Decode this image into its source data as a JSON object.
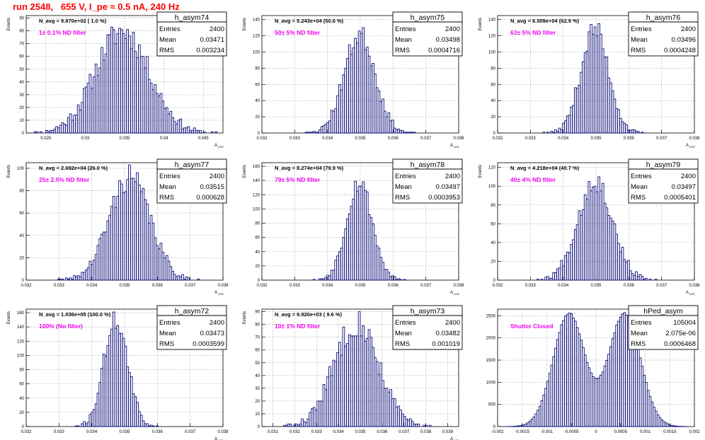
{
  "page_title": "run 2548,   655 V, I_pe ≈ 0.5 nA, 240 Hz",
  "stats_labels": {
    "entries": "Entries",
    "mean": "Mean",
    "rms": "RMS"
  },
  "chart_data": [
    {
      "type": "bar",
      "hist_name": "h_asym74",
      "ylabel": "Events",
      "xlabel": "A",
      "xlabel_sub": "LED",
      "n_avg": "N_avg = 9.870e+02 ( 1.0 %)",
      "annotation": "1± 0.1% ND filter",
      "stats": {
        "entries": "2400",
        "mean": "0.03471",
        "rms": "0.003234"
      },
      "xlim": [
        0.0225,
        0.0475
      ],
      "ylim": [
        0,
        92
      ],
      "xticks": [
        0.025,
        0.03,
        0.035,
        0.04,
        0.045
      ],
      "xticklabels": [
        "0.025",
        "0.03",
        "0.035",
        "0.04",
        "0.045"
      ],
      "yticks": [
        0,
        10,
        20,
        30,
        40,
        50,
        60,
        70,
        80,
        90
      ],
      "shape": {
        "mean": 0.03471,
        "sigma": 0.0034,
        "peak": 80,
        "bins": 100,
        "seed": 11
      }
    },
    {
      "type": "bar",
      "hist_name": "h_asym75",
      "ylabel": "Events",
      "xlabel": "A",
      "xlabel_sub": "LED",
      "n_avg": "N_avg = 5.243e+04 (50.6 %)",
      "annotation": "50± 5% ND filter",
      "stats": {
        "entries": "2400",
        "mean": "0.03498",
        "rms": "0.0004716"
      },
      "xlim": [
        0.032,
        0.038
      ],
      "ylim": [
        0,
        145
      ],
      "xticks": [
        0.032,
        0.033,
        0.034,
        0.035,
        0.036,
        0.037,
        0.038
      ],
      "xticklabels": [
        "0.032",
        "0.033",
        "0.034",
        "0.035",
        "0.036",
        "0.037",
        "0.038"
      ],
      "yticks": [
        0,
        20,
        40,
        60,
        80,
        100,
        120,
        140
      ],
      "shape": {
        "mean": 0.03498,
        "sigma": 0.00047,
        "peak": 122,
        "bins": 100,
        "seed": 23
      }
    },
    {
      "type": "bar",
      "hist_name": "h_asym76",
      "ylabel": "Events",
      "xlabel": "A",
      "xlabel_sub": "LED",
      "n_avg": "N_avg = 6.509e+04 (62.9 %)",
      "annotation": "63± 5% ND filter",
      "stats": {
        "entries": "2400",
        "mean": "0.03496",
        "rms": "0.0004248"
      },
      "xlim": [
        0.032,
        0.038
      ],
      "ylim": [
        0,
        145
      ],
      "xticks": [
        0.032,
        0.033,
        0.034,
        0.035,
        0.036,
        0.037,
        0.038
      ],
      "xticklabels": [
        "0.032",
        "0.033",
        "0.034",
        "0.035",
        "0.036",
        "0.037",
        "0.038"
      ],
      "yticks": [
        0,
        20,
        40,
        60,
        80,
        100,
        120,
        140
      ],
      "shape": {
        "mean": 0.03496,
        "sigma": 0.00042,
        "peak": 128,
        "bins": 100,
        "seed": 37
      }
    },
    {
      "type": "bar",
      "hist_name": "h_asym77",
      "ylabel": "Events",
      "xlabel": "A",
      "xlabel_sub": "LED",
      "n_avg": "N_avg = 2.692e+04 (26.0 %)",
      "annotation": "25± 2.5% ND filter",
      "stats": {
        "entries": "2400",
        "mean": "0.03515",
        "rms": "0.000628"
      },
      "xlim": [
        0.032,
        0.038
      ],
      "ylim": [
        0,
        105
      ],
      "xticks": [
        0.032,
        0.033,
        0.034,
        0.035,
        0.036,
        0.037,
        0.038
      ],
      "xticklabels": [
        "0.032",
        "0.033",
        "0.034",
        "0.035",
        "0.036",
        "0.037",
        "0.038"
      ],
      "yticks": [
        0,
        20,
        40,
        60,
        80,
        100
      ],
      "shape": {
        "mean": 0.03515,
        "sigma": 0.00062,
        "peak": 92,
        "bins": 100,
        "seed": 41
      }
    },
    {
      "type": "bar",
      "hist_name": "h_asym78",
      "ylabel": "Events",
      "xlabel": "A",
      "xlabel_sub": "LED",
      "n_avg": "N_avg = 8.274e+04 (79.9 %)",
      "annotation": "79± 5% ND filter",
      "stats": {
        "entries": "2400",
        "mean": "0.03497",
        "rms": "0.0003953"
      },
      "xlim": [
        0.032,
        0.038
      ],
      "ylim": [
        0,
        165
      ],
      "xticks": [
        0.032,
        0.033,
        0.034,
        0.035,
        0.036,
        0.037,
        0.038
      ],
      "xticklabels": [
        "0.032",
        "0.033",
        "0.034",
        "0.035",
        "0.036",
        "0.037",
        "0.038"
      ],
      "yticks": [
        0,
        20,
        40,
        60,
        80,
        100,
        120,
        140,
        160
      ],
      "shape": {
        "mean": 0.03497,
        "sigma": 0.00039,
        "peak": 138,
        "bins": 100,
        "seed": 53
      }
    },
    {
      "type": "bar",
      "hist_name": "h_asym79",
      "ylabel": "Events",
      "xlabel": "A",
      "xlabel_sub": "LED",
      "n_avg": "N_avg = 4.218e+04 (40.7 %)",
      "annotation": "40± 4% ND filter",
      "stats": {
        "entries": "2400",
        "mean": "0.03497",
        "rms": "0.0005401"
      },
      "xlim": [
        0.032,
        0.038
      ],
      "ylim": [
        0,
        125
      ],
      "xticks": [
        0.032,
        0.033,
        0.034,
        0.035,
        0.036,
        0.037,
        0.038
      ],
      "xticklabels": [
        "0.032",
        "0.033",
        "0.034",
        "0.035",
        "0.036",
        "0.037",
        "0.038"
      ],
      "yticks": [
        0,
        20,
        40,
        60,
        80,
        100,
        120
      ],
      "shape": {
        "mean": 0.03497,
        "sigma": 0.00053,
        "peak": 106,
        "bins": 100,
        "seed": 67
      }
    },
    {
      "type": "bar",
      "hist_name": "h_asym72",
      "ylabel": "Events",
      "xlabel": "A",
      "xlabel_sub": "LED",
      "n_avg": "N_avg = 1.036e+05 (100.0 %)",
      "annotation": "100% (No filter)",
      "stats": {
        "entries": "2400",
        "mean": "0.03473",
        "rms": "0.0003599"
      },
      "xlim": [
        0.032,
        0.038
      ],
      "ylim": [
        0,
        165
      ],
      "xticks": [
        0.032,
        0.033,
        0.034,
        0.035,
        0.036,
        0.037,
        0.038
      ],
      "xticklabels": [
        "0.032",
        "0.033",
        "0.034",
        "0.035",
        "0.036",
        "0.037",
        "0.038"
      ],
      "yticks": [
        0,
        20,
        40,
        60,
        80,
        100,
        120,
        140,
        160
      ],
      "shape": {
        "mean": 0.03473,
        "sigma": 0.00036,
        "peak": 150,
        "bins": 100,
        "seed": 71
      }
    },
    {
      "type": "bar",
      "hist_name": "h_asym73",
      "ylabel": "Events",
      "xlabel": "A",
      "xlabel_sub": "LED",
      "n_avg": "N_avg = 9.920e+03 ( 9.6 %)",
      "annotation": "10± 1% ND filter",
      "stats": {
        "entries": "2400",
        "mean": "0.03482",
        "rms": "0.001019"
      },
      "xlim": [
        0.0305,
        0.0395
      ],
      "ylim": [
        0,
        92
      ],
      "xticks": [
        0.031,
        0.032,
        0.033,
        0.034,
        0.035,
        0.036,
        0.037,
        0.038,
        0.039
      ],
      "xticklabels": [
        "0.031",
        "0.032",
        "0.033",
        "0.034",
        "0.035",
        "0.036",
        "0.037",
        "0.038",
        "0.039"
      ],
      "yticks": [
        0,
        10,
        20,
        30,
        40,
        50,
        60,
        70,
        80,
        90
      ],
      "shape": {
        "mean": 0.03482,
        "sigma": 0.00101,
        "peak": 82,
        "bins": 100,
        "seed": 83
      }
    },
    {
      "type": "bar",
      "hist_name": "hPed_asym",
      "ylabel": "",
      "xlabel": "",
      "xlabel_sub": "",
      "n_avg": "",
      "annotation": "Shutter Closed",
      "stats": {
        "entries": "105004",
        "mean": "2.075e-06",
        "rms": "0.0006468"
      },
      "xlim": [
        -0.002,
        0.002
      ],
      "ylim": [
        0,
        2650
      ],
      "xticks": [
        -0.002,
        -0.0015,
        -0.001,
        -0.0005,
        0,
        0.0005,
        0.001,
        0.0015,
        0.002
      ],
      "xticklabels": [
        "-0.002",
        "-0.0015",
        "-0.001",
        "-0.0005",
        "0",
        "0.0005",
        "0.001",
        "0.0015",
        "0.002"
      ],
      "yticks": [
        0,
        500,
        1000,
        1500,
        2000,
        2500
      ],
      "shape": {
        "bimodal": true,
        "mu1": -0.00055,
        "mu2": 0.00058,
        "sigma": 0.00032,
        "peak": 2550,
        "dip": 1130,
        "bins": 100,
        "seed": 97
      }
    }
  ]
}
